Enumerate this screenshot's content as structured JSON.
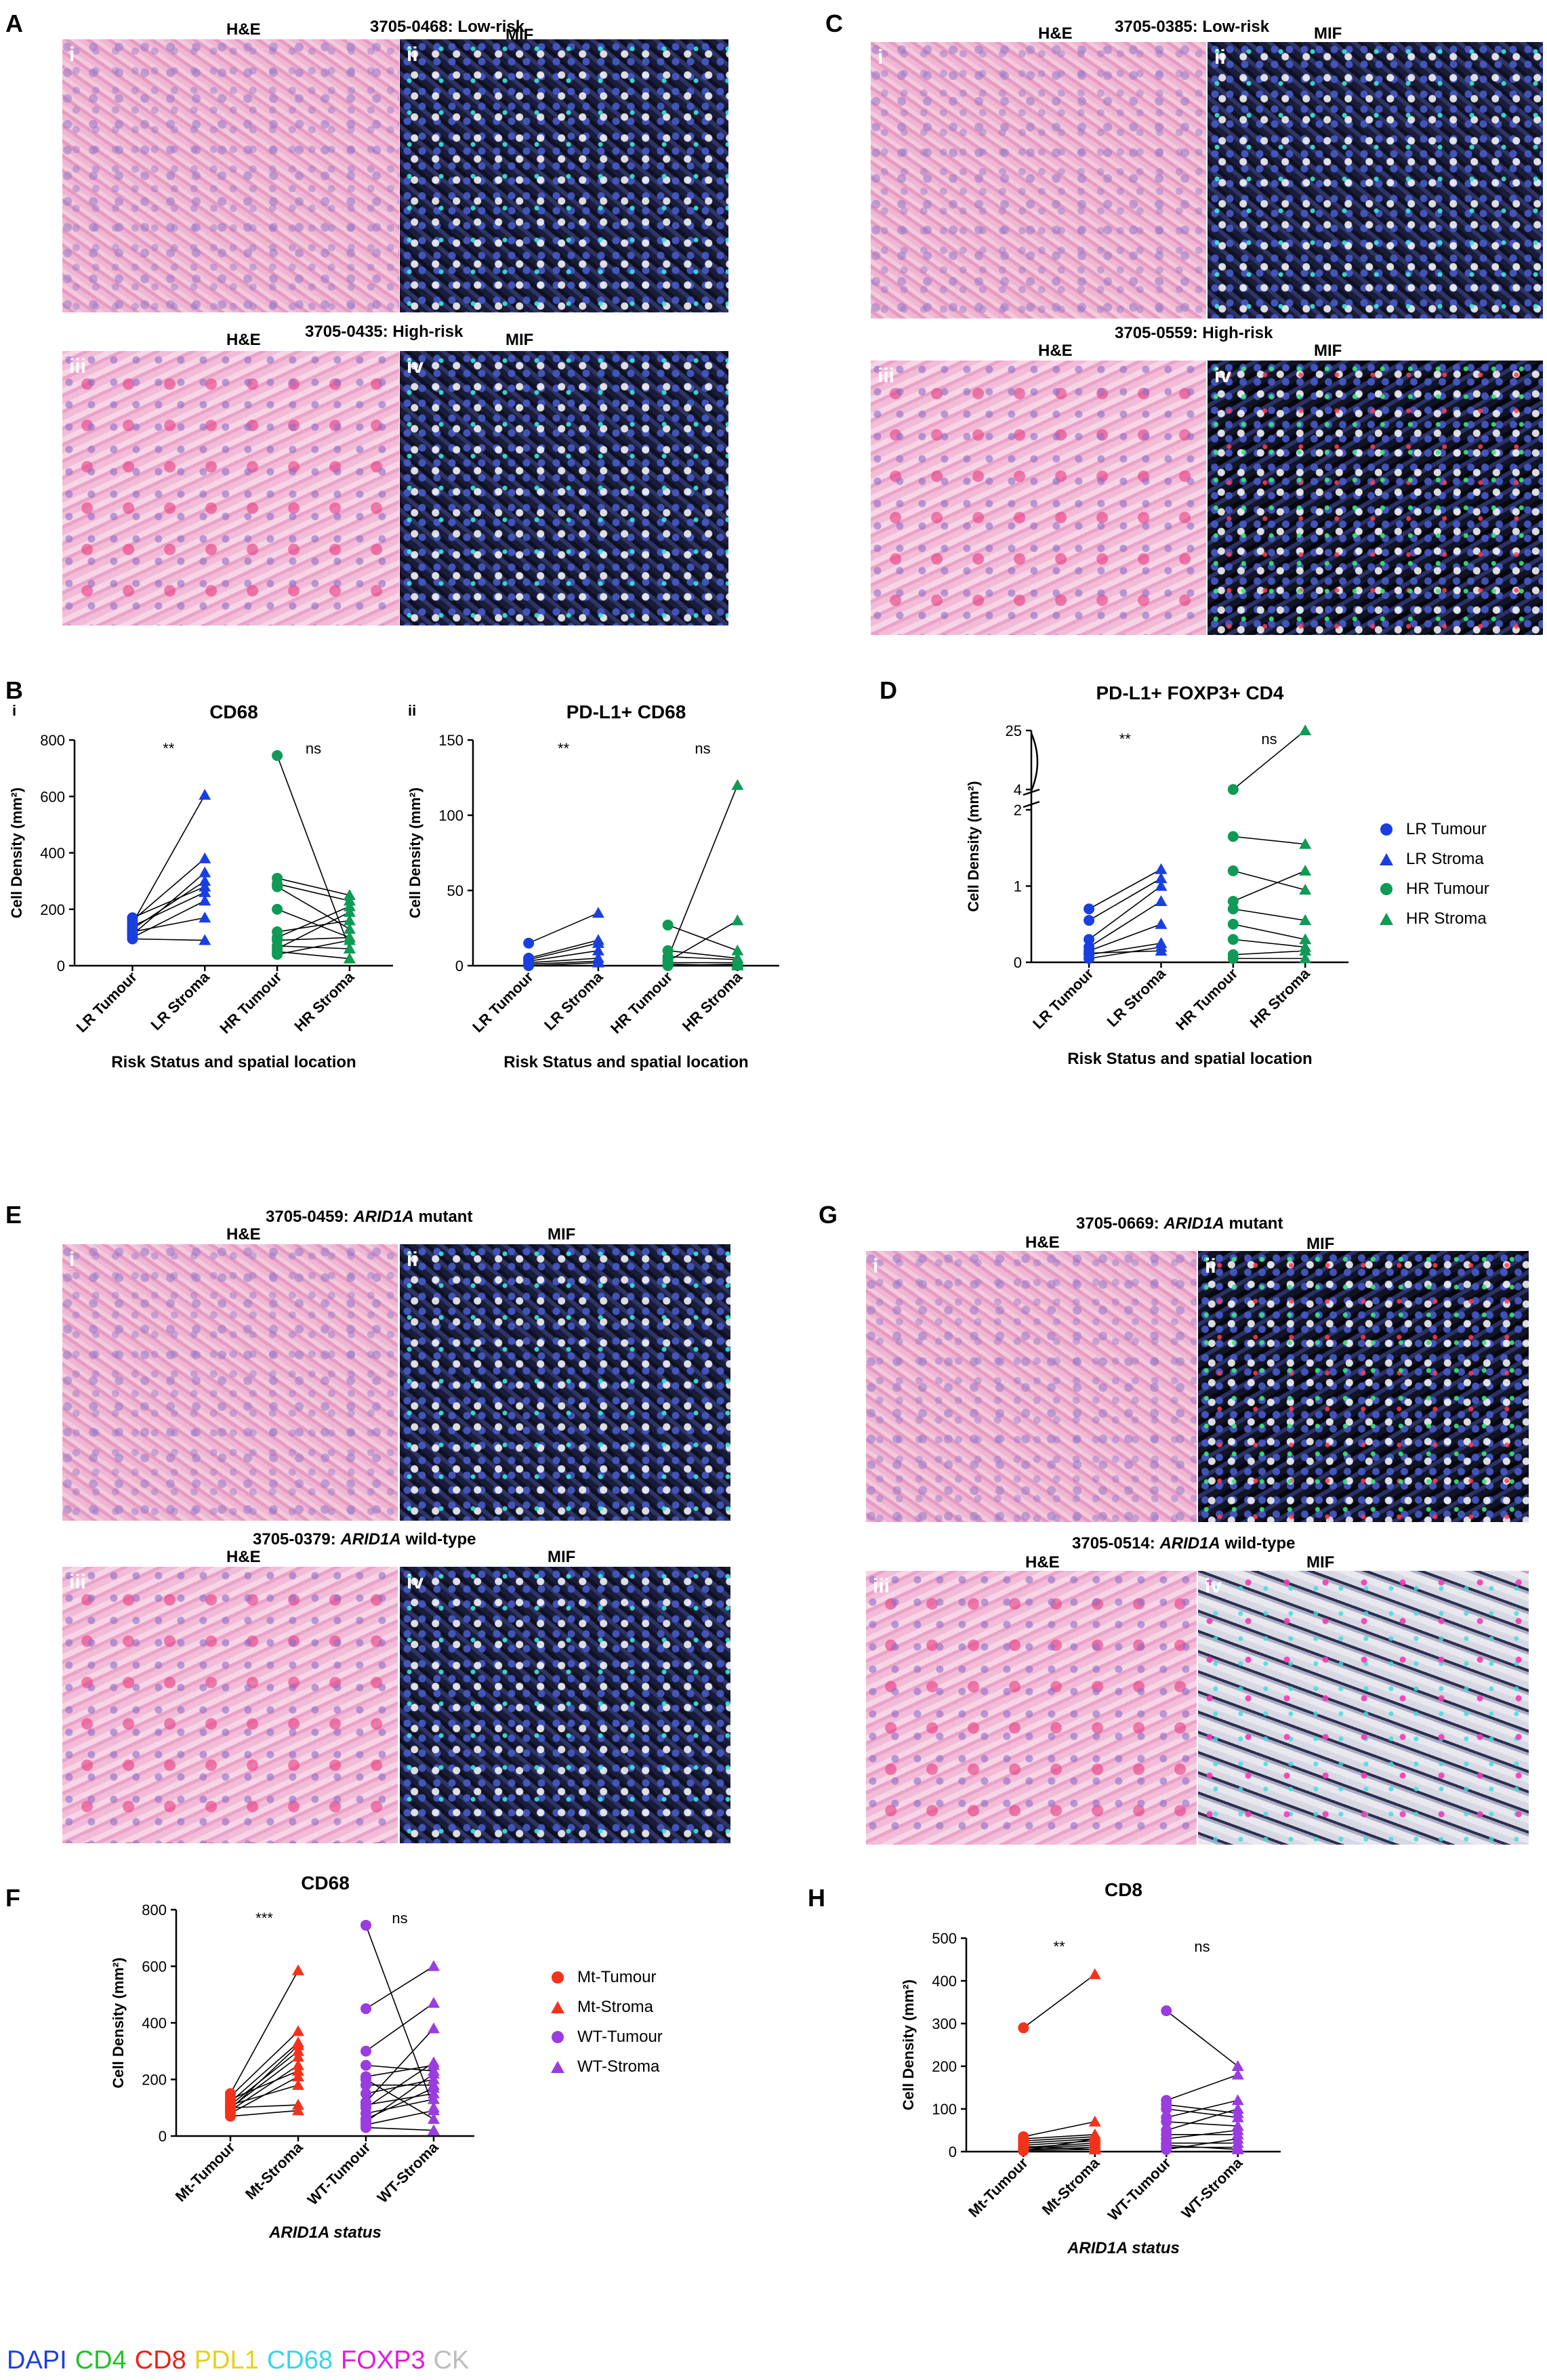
{
  "panels": {
    "A": {
      "label": "A",
      "he_label": "H&E",
      "mif_label": "MIF",
      "top_caption": "3705-0468: Low-risk",
      "bottom_caption": "3705-0435: High-risk",
      "roman": [
        "i",
        "ii",
        "iii",
        "iv"
      ]
    },
    "C": {
      "label": "C",
      "he_label": "H&E",
      "mif_label": "MIF",
      "top_caption": "3705-0385: Low-risk",
      "bottom_caption": "3705-0559: High-risk",
      "roman": [
        "i",
        "ii",
        "iii",
        "iv"
      ]
    },
    "E": {
      "label": "E",
      "he_label": "H&E",
      "mif_label": "MIF",
      "top_caption_id": "3705-0459: ",
      "top_caption_gene": "ARID1A",
      "top_caption_status": " mutant",
      "bottom_caption_id": "3705-0379: ",
      "bottom_caption_gene": "ARID1A",
      "bottom_caption_status": " wild-type",
      "roman": [
        "i",
        "ii",
        "iii",
        "iv"
      ]
    },
    "G": {
      "label": "G",
      "he_label": "H&E",
      "mif_label": "MIF",
      "top_caption_id": "3705-0669: ",
      "top_caption_gene": "ARID1A",
      "top_caption_status": " mutant",
      "bottom_caption_id": "3705-0514: ",
      "bottom_caption_gene": "ARID1A",
      "bottom_caption_status": " wild-type",
      "roman": [
        "i",
        "ii",
        "iii",
        "iv"
      ]
    },
    "B": {
      "label": "B",
      "sub_i": "i",
      "sub_ii": "ii"
    },
    "D": {
      "label": "D"
    },
    "F": {
      "label": "F"
    },
    "H": {
      "label": "H"
    }
  },
  "legend_risk": [
    "LR Tumour",
    "LR Stroma",
    "HR Tumour",
    "HR Stroma"
  ],
  "legend_arid": [
    "Mt-Tumour",
    "Mt-Stroma",
    "WT-Tumour",
    "WT-Stroma"
  ],
  "colors": {
    "lr": "#1a3fe0",
    "hr": "#0f9a55",
    "mt": "#f2331a",
    "wt": "#9a3ce0"
  },
  "footer": [
    {
      "text": "DAPI",
      "color": "#1f3fe0"
    },
    {
      "text": "CD4",
      "color": "#22c02a"
    },
    {
      "text": "CD8",
      "color": "#e8231a"
    },
    {
      "text": "PDL1",
      "color": "#e7d21c"
    },
    {
      "text": "CD68",
      "color": "#36d6e8"
    },
    {
      "text": "FOXP3",
      "color": "#e11bd6"
    },
    {
      "text": "CK",
      "color": "#bdbdbd"
    }
  ],
  "chart_data": [
    {
      "id": "B-i",
      "type": "scatter",
      "title": "CD68",
      "ylabel": "Cell Density (mm²)",
      "xlabel": "Risk Status and spatial location",
      "categories": [
        "LR Tumour",
        "LR Stroma",
        "HR Tumour",
        "HR Stroma"
      ],
      "ylim": [
        0,
        800
      ],
      "yticks": [
        "0",
        "200",
        "400",
        "600",
        "800"
      ],
      "annotations": [
        "**",
        "ns"
      ],
      "pairs_lr": [
        [
          150,
          605
        ],
        [
          160,
          380
        ],
        [
          95,
          90
        ],
        [
          110,
          330
        ],
        [
          130,
          300
        ],
        [
          140,
          260
        ],
        [
          100,
          230
        ],
        [
          120,
          170
        ],
        [
          170,
          280
        ]
      ],
      "pairs_hr": [
        [
          745,
          60
        ],
        [
          310,
          250
        ],
        [
          290,
          230
        ],
        [
          280,
          130
        ],
        [
          120,
          160
        ],
        [
          90,
          100
        ],
        [
          70,
          60
        ],
        [
          100,
          210
        ],
        [
          50,
          25
        ],
        [
          60,
          190
        ],
        [
          200,
          100
        ],
        [
          40,
          90
        ]
      ]
    },
    {
      "id": "B-ii",
      "type": "scatter",
      "title": "PD-L1+ CD68",
      "ylabel": "Cell Density (mm²)",
      "xlabel": "Risk Status and spatial location",
      "categories": [
        "LR Tumour",
        "LR Stroma",
        "HR Tumour",
        "HR Stroma"
      ],
      "ylim": [
        0,
        150
      ],
      "yticks": [
        "0",
        "50",
        "100",
        "150"
      ],
      "annotations": [
        "**",
        "ns"
      ],
      "pairs_lr": [
        [
          15,
          35
        ],
        [
          5,
          17
        ],
        [
          3,
          10
        ],
        [
          2,
          5
        ],
        [
          1,
          3
        ],
        [
          4,
          15
        ],
        [
          0,
          2
        ]
      ],
      "pairs_hr": [
        [
          27,
          10
        ],
        [
          10,
          5
        ],
        [
          5,
          120
        ],
        [
          3,
          30
        ],
        [
          2,
          2
        ],
        [
          1,
          0
        ],
        [
          0,
          1
        ],
        [
          6,
          4
        ]
      ]
    },
    {
      "id": "D",
      "type": "scatter",
      "title": "PD-L1+ FOXP3+ CD4",
      "ylabel": "Cell Density (mm²)",
      "xlabel": "Risk Status and spatial location",
      "categories": [
        "LR Tumour",
        "LR Stroma",
        "HR Tumour",
        "HR Stroma"
      ],
      "yticks": [
        "0",
        "1",
        "2",
        "4",
        "25"
      ],
      "annotations": [
        "**",
        "ns"
      ],
      "pairs_lr": [
        [
          0.7,
          1.22
        ],
        [
          0.55,
          1.1
        ],
        [
          0.3,
          1.0
        ],
        [
          0.2,
          0.8
        ],
        [
          0.15,
          0.5
        ],
        [
          0.1,
          0.25
        ],
        [
          0.05,
          0.2
        ],
        [
          0.12,
          0.15
        ]
      ],
      "pairs_hr": [
        [
          4,
          25
        ],
        [
          1.65,
          1.55
        ],
        [
          1.2,
          0.95
        ],
        [
          0.8,
          1.2
        ],
        [
          0.7,
          0.55
        ],
        [
          0.5,
          0.3
        ],
        [
          0.3,
          0.2
        ],
        [
          0.1,
          0.15
        ],
        [
          0.05,
          0.05
        ]
      ]
    },
    {
      "id": "F",
      "type": "scatter",
      "title": "CD68",
      "ylabel": "Cell Density (mm²)",
      "xlabel": "ARID1A status",
      "categories": [
        "Mt-Tumour",
        "Mt-Stroma",
        "WT-Tumour",
        "WT-Stroma"
      ],
      "ylim": [
        0,
        800
      ],
      "yticks": [
        "0",
        "200",
        "400",
        "600",
        "800"
      ],
      "annotations": [
        "***",
        "ns"
      ],
      "pairs_mt": [
        [
          150,
          585
        ],
        [
          140,
          370
        ],
        [
          120,
          330
        ],
        [
          110,
          300
        ],
        [
          100,
          280
        ],
        [
          90,
          250
        ],
        [
          80,
          210
        ],
        [
          110,
          180
        ],
        [
          100,
          110
        ],
        [
          70,
          90
        ],
        [
          130,
          230
        ],
        [
          95,
          320
        ]
      ],
      "pairs_wt": [
        [
          745,
          100
        ],
        [
          450,
          600
        ],
        [
          300,
          470
        ],
        [
          250,
          230
        ],
        [
          210,
          250
        ],
        [
          180,
          180
        ],
        [
          150,
          200
        ],
        [
          120,
          380
        ],
        [
          100,
          260
        ],
        [
          80,
          130
        ],
        [
          60,
          170
        ],
        [
          50,
          220
        ],
        [
          40,
          90
        ],
        [
          30,
          20
        ],
        [
          200,
          60
        ],
        [
          110,
          150
        ]
      ]
    },
    {
      "id": "H",
      "type": "scatter",
      "title": "CD8",
      "ylabel": "Cell Density (mm²)",
      "xlabel": "ARID1A status",
      "categories": [
        "Mt-Tumour",
        "Mt-Stroma",
        "WT-Tumour",
        "WT-Stroma"
      ],
      "ylim": [
        0,
        500
      ],
      "yticks": [
        "0",
        "100",
        "200",
        "300",
        "400",
        "500"
      ],
      "annotations": [
        "**",
        "ns"
      ],
      "pairs_mt": [
        [
          290,
          415
        ],
        [
          35,
          70
        ],
        [
          30,
          40
        ],
        [
          25,
          35
        ],
        [
          20,
          30
        ],
        [
          15,
          25
        ],
        [
          10,
          20
        ],
        [
          8,
          15
        ],
        [
          5,
          10
        ],
        [
          3,
          5
        ],
        [
          2,
          30
        ],
        [
          12,
          5
        ]
      ],
      "pairs_wt": [
        [
          330,
          200
        ],
        [
          120,
          180
        ],
        [
          110,
          90
        ],
        [
          100,
          80
        ],
        [
          70,
          60
        ],
        [
          50,
          100
        ],
        [
          40,
          40
        ],
        [
          30,
          50
        ],
        [
          20,
          20
        ],
        [
          10,
          10
        ],
        [
          5,
          30
        ],
        [
          15,
          5
        ],
        [
          80,
          120
        ]
      ]
    }
  ]
}
